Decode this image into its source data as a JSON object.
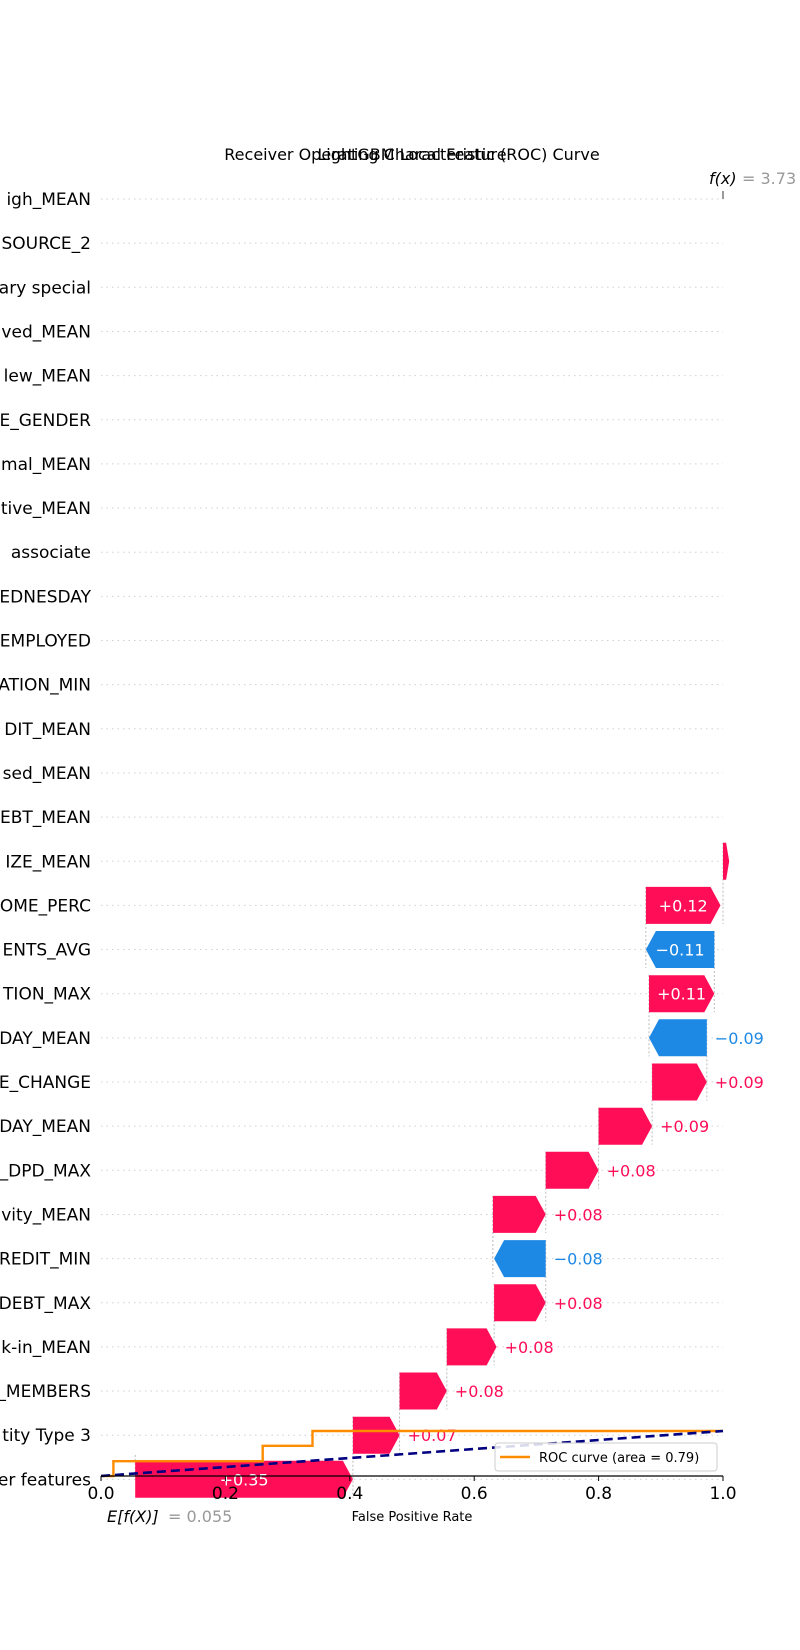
{
  "chart_data": [
    {
      "type": "waterfall",
      "title": "LightGBM Local Feature",
      "feature_labels": [
        "igh_MEAN",
        "SOURCE_2",
        "ary special",
        "ved_MEAN",
        "lew_MEAN",
        "E_GENDER",
        "mal_MEAN",
        "tive_MEAN",
        " associate",
        "EDNESDAY",
        "EMPLOYED",
        "ATION_MIN",
        "DIT_MEAN",
        "sed_MEAN",
        "EBT_MEAN",
        "IZE_MEAN",
        "OME_PERC",
        "ENTS_AVG",
        "TION_MAX",
        "DAY_MEAN",
        "E_CHANGE",
        "DAY_MEAN",
        "_DPD_MAX",
        "vity_MEAN",
        "REDIT_MIN",
        "DEBT_MAX",
        "k-in_MEAN",
        "_MEMBERS",
        "tity Type 3",
        "er features"
      ],
      "base_value": 0.055,
      "base_value_label": "= 0.055",
      "base_symbol": "E[f(X)]",
      "output_value": 3.73,
      "output_value_label": "= 3.73",
      "output_symbol": "f(x)",
      "bars": [
        {
          "row": 15,
          "start": 1.0,
          "end": 1.01,
          "label": "",
          "sign": "pos"
        },
        {
          "row": 16,
          "start": 0.876,
          "end": 0.996,
          "label": "+0.12",
          "sign": "pos"
        },
        {
          "row": 17,
          "start": 0.986,
          "end": 0.876,
          "label": "−0.11",
          "sign": "neg"
        },
        {
          "row": 18,
          "start": 0.881,
          "end": 0.986,
          "label": "+0.11",
          "sign": "pos"
        },
        {
          "row": 19,
          "start": 0.974,
          "end": 0.881,
          "label": "−0.09",
          "sign": "neg"
        },
        {
          "row": 20,
          "start": 0.886,
          "end": 0.974,
          "label": "+0.09",
          "sign": "pos"
        },
        {
          "row": 21,
          "start": 0.8,
          "end": 0.886,
          "label": "+0.09",
          "sign": "pos"
        },
        {
          "row": 22,
          "start": 0.715,
          "end": 0.8,
          "label": "+0.08",
          "sign": "pos"
        },
        {
          "row": 23,
          "start": 0.63,
          "end": 0.715,
          "label": "+0.08",
          "sign": "pos"
        },
        {
          "row": 24,
          "start": 0.715,
          "end": 0.632,
          "label": "−0.08",
          "sign": "neg"
        },
        {
          "row": 25,
          "start": 0.632,
          "end": 0.715,
          "label": "+0.08",
          "sign": "pos"
        },
        {
          "row": 26,
          "start": 0.556,
          "end": 0.636,
          "label": "+0.08",
          "sign": "pos"
        },
        {
          "row": 27,
          "start": 0.48,
          "end": 0.556,
          "label": "+0.08",
          "sign": "pos"
        },
        {
          "row": 28,
          "start": 0.405,
          "end": 0.48,
          "label": "+0.07",
          "sign": "pos"
        },
        {
          "row": 29,
          "start": 0.055,
          "end": 0.405,
          "label": "+0.35",
          "sign": "pos"
        }
      ]
    },
    {
      "type": "line",
      "title": "Receiver Operating Characteristic (ROC) Curve",
      "xlabel": "False Positive Rate",
      "ylabel": "",
      "xlim": [
        0.0,
        1.0
      ],
      "ylim": [
        0.0,
        1.0
      ],
      "x_ticks": [
        "0.0",
        "0.2",
        "0.4",
        "0.6",
        "0.8",
        "1.0"
      ],
      "legend_position": "bottom-right",
      "series": [
        {
          "name": "ROC curve (area = 0.79)",
          "color": "#ff8c00",
          "x": [
            0.0,
            0.02,
            0.02,
            0.26,
            0.26,
            0.34,
            0.34,
            1.0
          ],
          "y": [
            0.0,
            0.0,
            0.33,
            0.33,
            0.67,
            0.67,
            1.0,
            1.0
          ]
        },
        {
          "name": "",
          "color": "#000080",
          "style": "dashed",
          "x": [
            0.0,
            1.0
          ],
          "y": [
            0.0,
            1.0
          ]
        }
      ]
    }
  ],
  "colors": {
    "positive": "#ff0d57",
    "negative": "#1e88e5",
    "roc": "#ff8c00",
    "diagonal": "#000080",
    "muted": "#999999"
  }
}
